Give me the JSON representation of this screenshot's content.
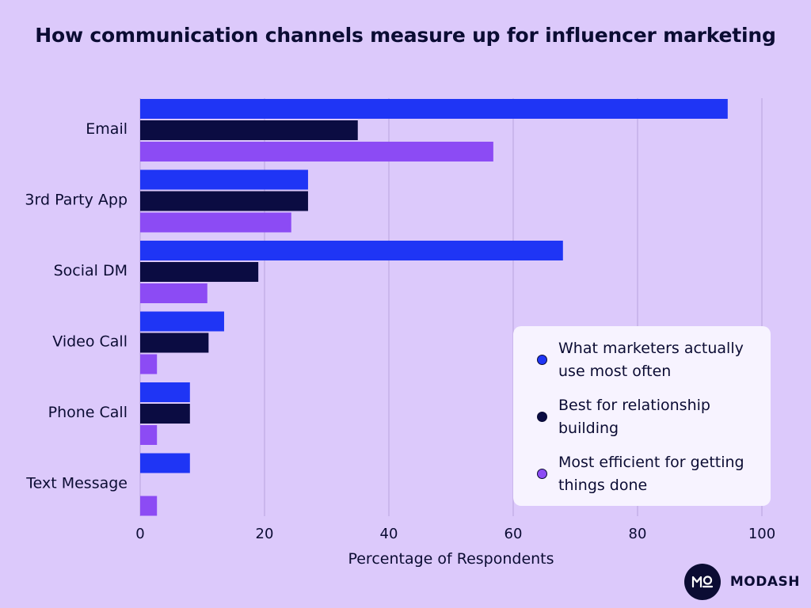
{
  "chart_data": {
    "type": "bar",
    "orientation": "horizontal",
    "title": "How communication channels measure up for influencer marketing",
    "xlabel": "Percentage of Respondents",
    "ylabel": "",
    "xlim": [
      0,
      100
    ],
    "xticks": [
      0,
      20,
      40,
      60,
      80,
      100
    ],
    "grid": true,
    "legend_position": "bottom-right",
    "categories": [
      "Email",
      "3rd Party App",
      "Social DM",
      "Video Call",
      "Phone Call",
      "Text Message"
    ],
    "series": [
      {
        "name": "What marketers actually use most often",
        "color": "#1f35f5",
        "values": [
          94.5,
          27,
          68,
          13.5,
          8,
          8
        ]
      },
      {
        "name": "Best for relationship building",
        "color": "#0b0c42",
        "values": [
          35,
          27,
          19,
          11,
          8,
          0
        ]
      },
      {
        "name": "Most efficient for getting things done",
        "color": "#8c4bf4",
        "values": [
          56.8,
          24.3,
          10.8,
          2.7,
          2.7,
          2.7
        ]
      }
    ]
  },
  "legend": {
    "items": [
      {
        "line1": "What marketers actually",
        "line2": "use most often",
        "color": "#1f35f5"
      },
      {
        "line1": "Best for relationship",
        "line2": "building",
        "color": "#0b0c42"
      },
      {
        "line1": "Most efficient for getting",
        "line2": "things done",
        "color": "#8c4bf4"
      }
    ]
  },
  "brand": {
    "name": "MODASH",
    "logo_text": "MO"
  }
}
